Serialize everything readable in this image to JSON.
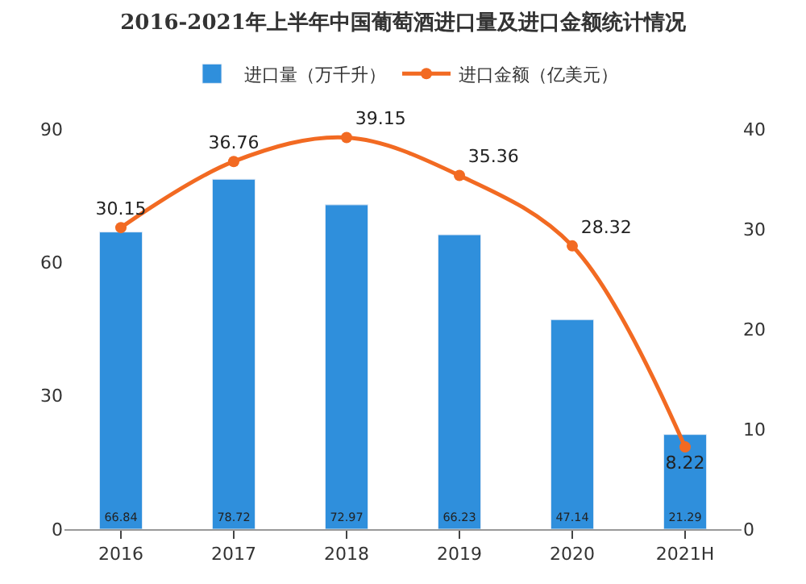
{
  "chart_data": {
    "type": "bar",
    "title": "2016-2021年上半年中国葡萄酒进口量及进口金额统计情况",
    "categories": [
      "2016",
      "2017",
      "2018",
      "2019",
      "2020",
      "2021H"
    ],
    "series": [
      {
        "name": "进口量（万千升）",
        "color": "#2f8fdc",
        "values": [
          66.84,
          78.72,
          72.97,
          66.23,
          47.14,
          21.29
        ]
      },
      {
        "name": "进口金额（亿美元）",
        "type": "line",
        "axis": "y2",
        "color": "#f26a22",
        "marker": "circle",
        "values": [
          30.15,
          36.76,
          39.15,
          35.36,
          28.32,
          8.22
        ]
      }
    ],
    "ylim": [
      0,
      90
    ],
    "yticks": [
      0,
      30,
      60,
      90
    ],
    "y2lim": [
      0,
      40
    ],
    "y2ticks": [
      0,
      10,
      20,
      30,
      40
    ],
    "data_labels": true,
    "legend": "top"
  }
}
